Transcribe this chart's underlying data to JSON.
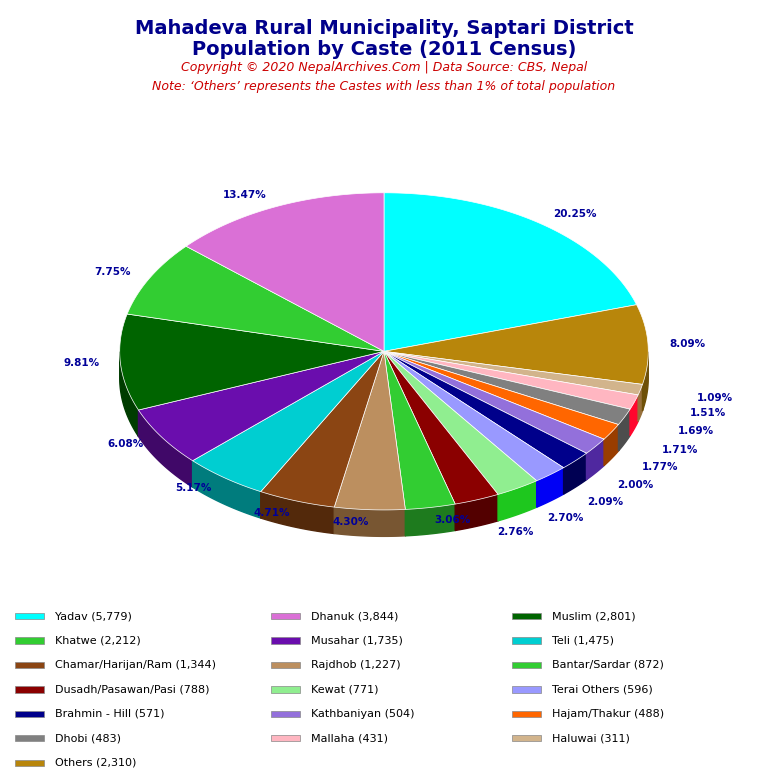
{
  "title_line1": "Mahadeva Rural Municipality, Saptari District",
  "title_line2": "Population by Caste (2011 Census)",
  "title_color": "#00008B",
  "copyright_text": "Copyright © 2020 NepalArchives.Com | Data Source: CBS, Nepal",
  "note_text": "Note: ‘Others’ represents the Castes with less than 1% of total population",
  "subtitle_color": "#CC0000",
  "label_color": "#000099",
  "background_color": "#FFFFFF",
  "slices": [
    {
      "label": "Yadav (5,779)",
      "value": 5779,
      "pct": "20.25%",
      "color": "#00FFFF"
    },
    {
      "label": "Others (2,310)",
      "value": 2310,
      "pct": "8.09%",
      "color": "#B8860B"
    },
    {
      "label": "Haluwai (311)",
      "value": 311,
      "pct": "1.09%",
      "color": "#D2B48C"
    },
    {
      "label": "Mallaha (431)",
      "value": 431,
      "pct": "1.51%",
      "color": "#FFB6C1"
    },
    {
      "label": "Dhobi (483)",
      "value": 483,
      "pct": "1.69%",
      "color": "#808080"
    },
    {
      "label": "Hajam/Thakur (488)",
      "value": 488,
      "pct": "1.71%",
      "color": "#FF6600"
    },
    {
      "label": "Kathbaniyan (504)",
      "value": 504,
      "pct": "1.77%",
      "color": "#9370DB"
    },
    {
      "label": "Brahmin - Hill (571)",
      "value": 571,
      "pct": "2.00%",
      "color": "#00008B"
    },
    {
      "label": "Terai Others (596)",
      "value": 596,
      "pct": "2.09%",
      "color": "#9999FF"
    },
    {
      "label": "Kewat (771)",
      "value": 771,
      "pct": "2.70%",
      "color": "#90EE90"
    },
    {
      "label": "Dusadh/Pasawan/Pasi (788)",
      "value": 788,
      "pct": "2.76%",
      "color": "#8B0000"
    },
    {
      "label": "Bantar/Sardar (872)",
      "value": 872,
      "pct": "3.06%",
      "color": "#32CD32"
    },
    {
      "label": "Rajdhob (1,227)",
      "value": 1227,
      "pct": "4.30%",
      "color": "#BC8F5F"
    },
    {
      "label": "Chamar/Harijan/Ram (1,344)",
      "value": 1344,
      "pct": "4.71%",
      "color": "#8B4513"
    },
    {
      "label": "Teli (1,475)",
      "value": 1475,
      "pct": "5.17%",
      "color": "#00CED1"
    },
    {
      "label": "Musahar (1,735)",
      "value": 1735,
      "pct": "6.08%",
      "color": "#6A0DAD"
    },
    {
      "label": "Muslim (2,801)",
      "value": 2801,
      "pct": "9.81%",
      "color": "#006400"
    },
    {
      "label": "Dhanuk (3,844)",
      "value": 3844,
      "pct": "13.47%",
      "color": "#DA70D6"
    },
    {
      "label": "Khatwe (2,212)",
      "value": 2212,
      "pct": "7.75%",
      "color": "#32CD32"
    }
  ],
  "legend_col1": [
    "Yadav (5,779)",
    "Khatwe (2,212)",
    "Chamar/Harijan/Ram (1,344)",
    "Dusadh/Pasawan/Pasi (788)",
    "Brahmin - Hill (571)",
    "Dhobi (483)",
    "Others (2,310)"
  ],
  "legend_col2": [
    "Dhanuk (3,844)",
    "Musahar (1,735)",
    "Rajdhob (1,227)",
    "Kewat (771)",
    "Kathbaniyan (504)",
    "Mallaha (431)"
  ],
  "legend_col3": [
    "Muslim (2,801)",
    "Teli (1,475)",
    "Bantar/Sardar (872)",
    "Terai Others (596)",
    "Hajam/Thakur (488)",
    "Haluwai (311)"
  ]
}
